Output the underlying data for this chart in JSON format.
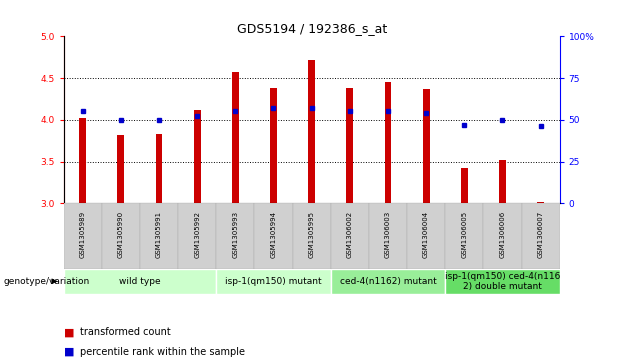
{
  "title": "GDS5194 / 192386_s_at",
  "samples": [
    "GSM1305989",
    "GSM1305990",
    "GSM1305991",
    "GSM1305992",
    "GSM1305993",
    "GSM1305994",
    "GSM1305995",
    "GSM1306002",
    "GSM1306003",
    "GSM1306004",
    "GSM1306005",
    "GSM1306006",
    "GSM1306007"
  ],
  "transformed_count": [
    4.02,
    3.82,
    3.83,
    4.12,
    4.57,
    4.38,
    4.72,
    4.38,
    4.45,
    4.37,
    3.42,
    3.52,
    3.01
  ],
  "percentile_rank": [
    55,
    50,
    50,
    52,
    55,
    57,
    57,
    55,
    55,
    54,
    47,
    50,
    46
  ],
  "ylim_left": [
    3.0,
    5.0
  ],
  "ylim_right": [
    0,
    100
  ],
  "yticks_left": [
    3.0,
    3.5,
    4.0,
    4.5,
    5.0
  ],
  "yticks_right": [
    0,
    25,
    50,
    75,
    100
  ],
  "bar_color": "#cc0000",
  "dot_color": "#0000cc",
  "bar_bottom": 3.0,
  "groups": [
    {
      "label": "wild type",
      "start": 0,
      "end": 4,
      "color": "#ccffcc"
    },
    {
      "label": "isp-1(qm150) mutant",
      "start": 4,
      "end": 7,
      "color": "#ccffcc"
    },
    {
      "label": "ced-4(n1162) mutant",
      "start": 7,
      "end": 10,
      "color": "#99ee99"
    },
    {
      "label": "isp-1(qm150) ced-4(n116\n2) double mutant",
      "start": 10,
      "end": 13,
      "color": "#66dd66"
    }
  ],
  "group_separator_cols": [
    4,
    7,
    10
  ],
  "genotype_label": "genotype/variation",
  "legend_bar_label": "transformed count",
  "legend_dot_label": "percentile rank within the sample",
  "title_fontsize": 9,
  "tick_fontsize": 6.5,
  "sample_fontsize": 5.0,
  "group_fontsize": 6.5,
  "legend_fontsize": 7
}
